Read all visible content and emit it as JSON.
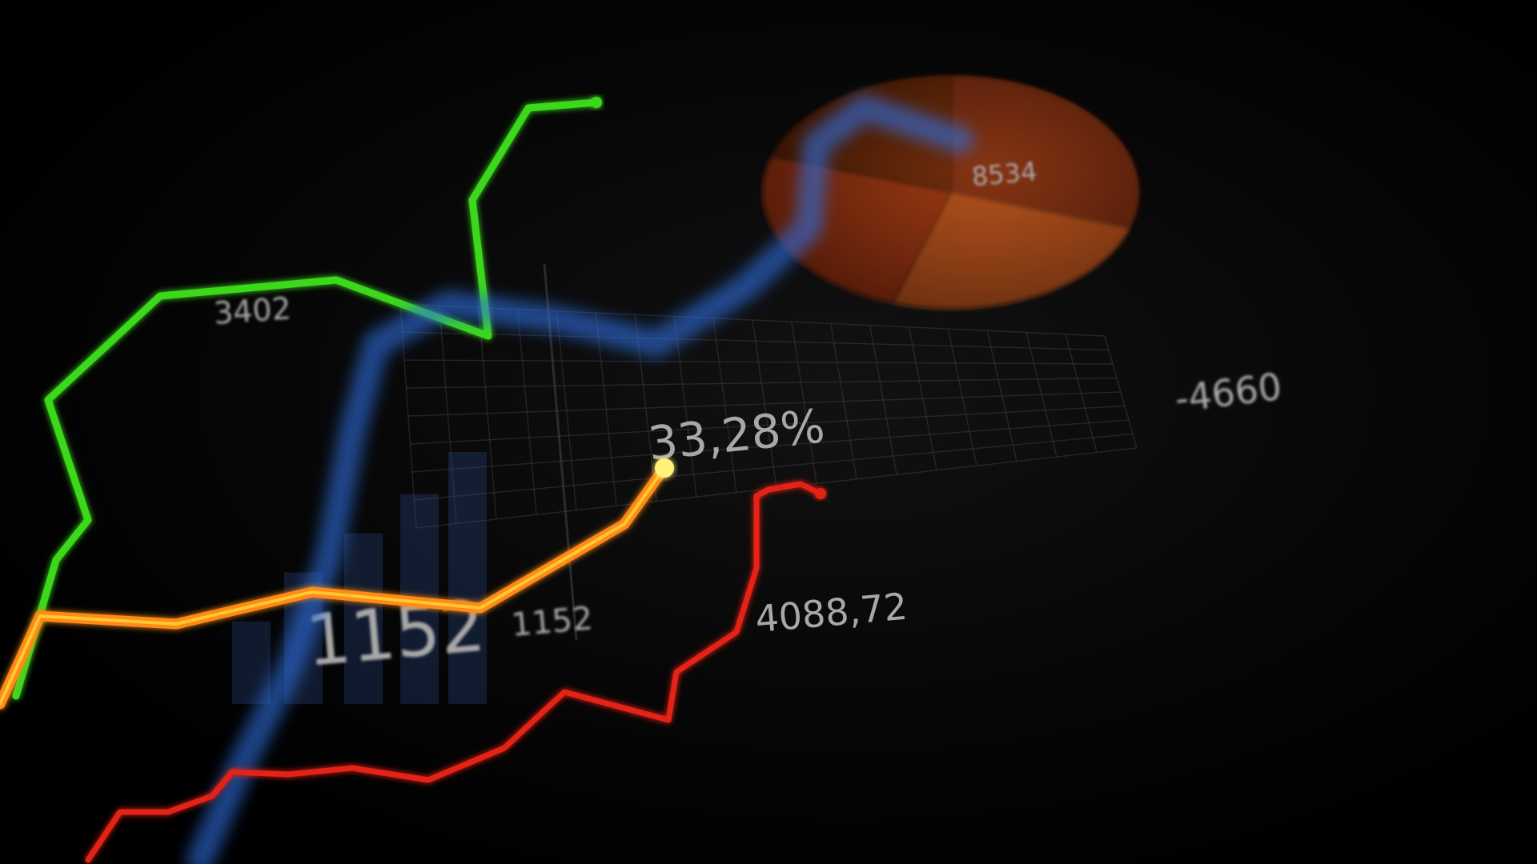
{
  "chart_data": {
    "type": "line",
    "series": [
      {
        "color": "#3ad81e",
        "values": [
          [
            20,
            870
          ],
          [
            70,
            700
          ],
          [
            110,
            650
          ],
          [
            60,
            500
          ],
          [
            200,
            370
          ],
          [
            420,
            350
          ],
          [
            610,
            420
          ],
          [
            590,
            250
          ],
          [
            660,
            135
          ],
          [
            745,
            128
          ]
        ]
      },
      {
        "color": "#2f6fe0",
        "values": [
          [
            250,
            1075
          ],
          [
            300,
            960
          ],
          [
            360,
            840
          ],
          [
            410,
            700
          ],
          [
            440,
            540
          ],
          [
            470,
            430
          ],
          [
            560,
            380
          ],
          [
            700,
            400
          ],
          [
            820,
            430
          ],
          [
            930,
            360
          ],
          [
            1010,
            285
          ],
          [
            1020,
            180
          ],
          [
            1080,
            135
          ],
          [
            1200,
            175
          ]
        ]
      },
      {
        "color": "#ff8a12",
        "values": [
          [
            0,
            880
          ],
          [
            50,
            770
          ],
          [
            220,
            780
          ],
          [
            390,
            740
          ],
          [
            600,
            760
          ],
          [
            780,
            655
          ],
          [
            830,
            585
          ]
        ]
      },
      {
        "color": "#e52012",
        "values": [
          [
            110,
            1075
          ],
          [
            150,
            1015
          ],
          [
            210,
            1015
          ],
          [
            265,
            995
          ],
          [
            290,
            965
          ],
          [
            360,
            968
          ],
          [
            440,
            960
          ],
          [
            535,
            975
          ],
          [
            630,
            935
          ],
          [
            705,
            865
          ],
          [
            835,
            900
          ],
          [
            845,
            840
          ],
          [
            920,
            790
          ],
          [
            945,
            710
          ],
          [
            945,
            620
          ],
          [
            960,
            612
          ],
          [
            1000,
            605
          ],
          [
            1025,
            617
          ]
        ]
      }
    ],
    "bars": [
      295,
      470,
      610,
      750,
      900
    ],
    "pie": {
      "slices": [
        {
          "value": 30,
          "color": "#7e2808"
        },
        {
          "value": 25,
          "color": "#d35a1c"
        },
        {
          "value": 25,
          "color": "#a8330d"
        },
        {
          "value": 20,
          "color": "#5c1a06"
        }
      ]
    },
    "labels": [
      {
        "text": "33,28%",
        "size": 58,
        "fill": "#cfcfcf"
      },
      {
        "text": "4088,72",
        "size": 46,
        "fill": "#a6a6a6"
      },
      {
        "text": "1152",
        "size": 88,
        "fill": "#7a7a7a"
      },
      {
        "text": "1152",
        "size": 40,
        "fill": "#6a6a6a"
      },
      {
        "text": "-4660",
        "size": 46,
        "fill": "#8a8a8a"
      },
      {
        "text": "3402",
        "size": 38,
        "fill": "#4e4e4e"
      },
      {
        "text": "8534",
        "size": 32,
        "fill": "#c86a3a"
      }
    ]
  }
}
